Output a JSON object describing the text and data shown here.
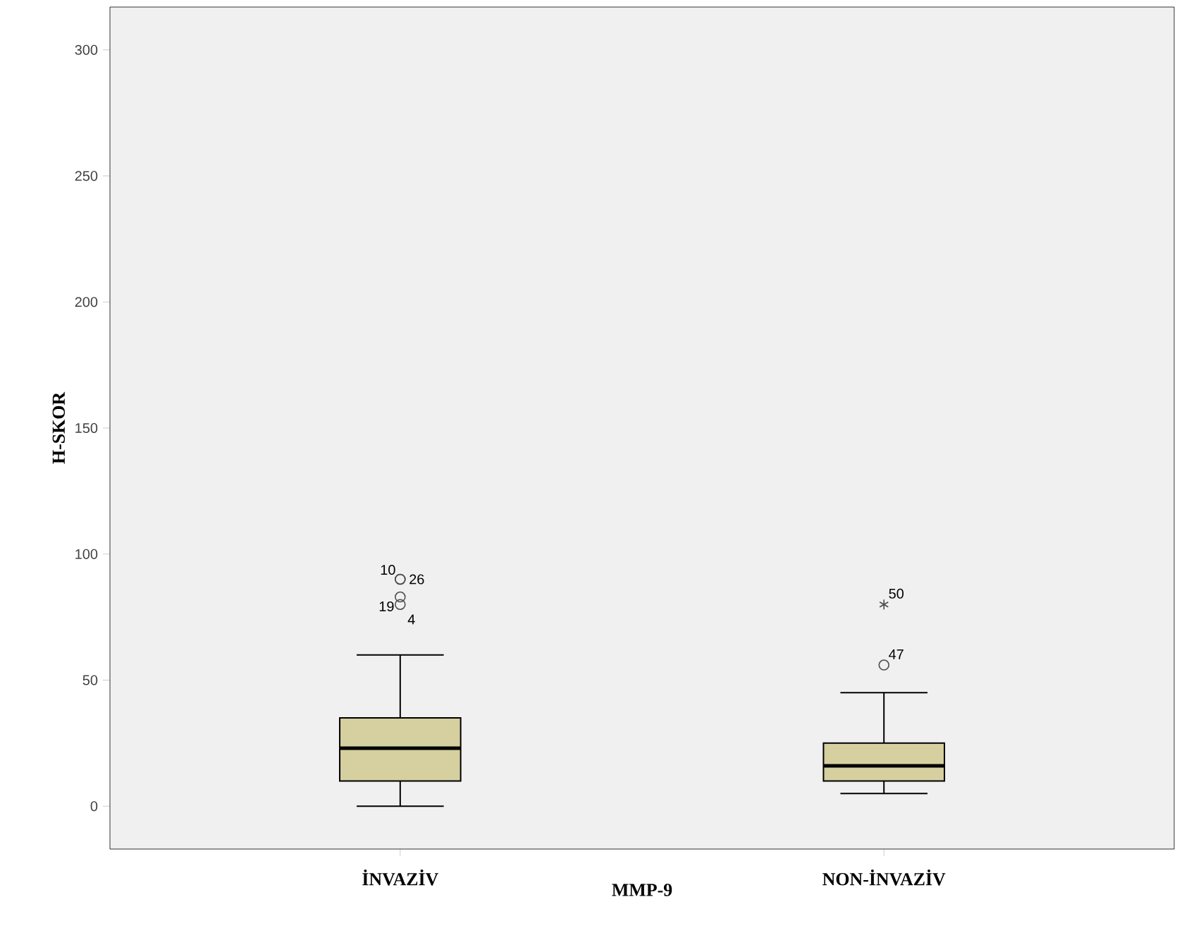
{
  "chart_data": {
    "type": "box",
    "xlabel": "MMP-9",
    "ylabel": "H-SKOR",
    "categories": [
      "İNVAZİV",
      "NON-İNVAZİV"
    ],
    "series": [
      {
        "color": "#d6cf9f",
        "boxes": [
          {
            "low": 0,
            "q1": 10,
            "median": 23,
            "q3": 35,
            "high": 60,
            "outliers": [
              90,
              90,
              83,
              80
            ]
          },
          {
            "low": 5,
            "q1": 10,
            "median": 16,
            "q3": 25,
            "high": 45,
            "outliers": [
              56,
              80
            ]
          }
        ]
      }
    ],
    "ylim": [
      -17,
      317
    ],
    "yticks": [
      0,
      50,
      100,
      150,
      200,
      250,
      300
    ],
    "annotations": [
      "10",
      "26",
      "19",
      "4",
      "47",
      "50"
    ]
  }
}
